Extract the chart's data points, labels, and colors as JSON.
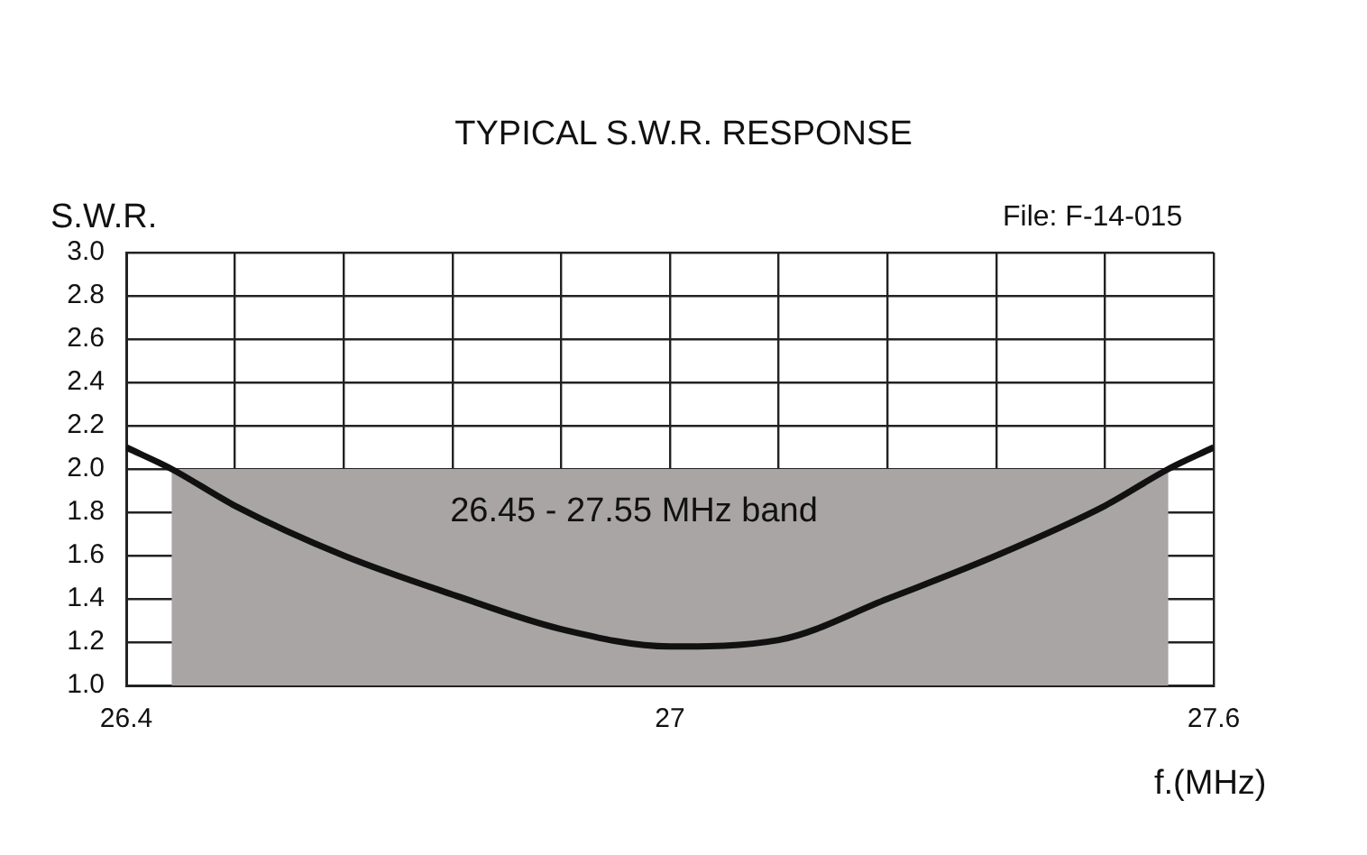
{
  "chart_data": {
    "type": "line",
    "title": "TYPICAL S.W.R. RESPONSE",
    "ylabel": "S.W.R.",
    "xlabel": "f.(MHz)",
    "annotations": [
      "26.45 - 27.55 MHz band",
      "File:  F-14-015"
    ],
    "x": [
      26.4,
      26.45,
      26.52,
      26.64,
      26.76,
      26.88,
      27.0,
      27.12,
      27.24,
      27.36,
      27.48,
      27.55,
      27.6
    ],
    "series": [
      {
        "type": "area",
        "color": "#a8a5a4",
        "x": [
          26.45,
          27.55
        ],
        "values": [
          2.0,
          2.0
        ]
      },
      {
        "color": "#111111",
        "values": [
          2.1,
          2.0,
          1.83,
          1.6,
          1.42,
          1.26,
          1.18,
          1.21,
          1.4,
          1.6,
          1.83,
          2.0,
          2.1
        ]
      }
    ],
    "xlim": [
      26.4,
      27.6
    ],
    "xticks": [
      26.4,
      {
        "value": 26.52,
        "label": null
      },
      {
        "value": 26.64,
        "label": null
      },
      {
        "value": 26.76,
        "label": null
      },
      {
        "value": 26.88,
        "label": null
      },
      27,
      {
        "value": 27.12,
        "label": null
      },
      {
        "value": 27.24,
        "label": null
      },
      {
        "value": 27.36,
        "label": null
      },
      {
        "value": 27.48,
        "label": null
      },
      27.6
    ],
    "ylim": [
      1.0,
      3.0
    ],
    "yticks": [
      {
        "value": 1,
        "label": "1.0"
      },
      1.2,
      1.4,
      1.6,
      1.8,
      {
        "value": 2,
        "label": "2.0"
      },
      2.2,
      2.4,
      2.6,
      2.8,
      {
        "value": 3,
        "label": "3.0"
      }
    ],
    "grid": true,
    "legend": false,
    "marker": "none",
    "line_style": "solid"
  }
}
